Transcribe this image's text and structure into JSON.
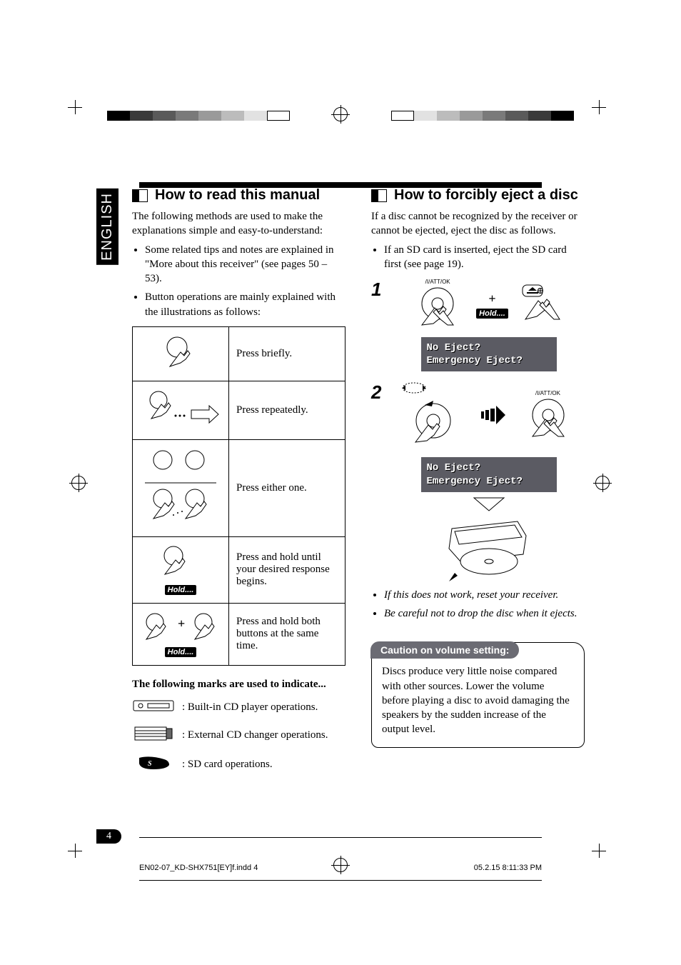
{
  "language_tab": "ENGLISH",
  "page_number": "4",
  "footer_left": "EN02-07_KD-SHX751[EY]f.indd   4",
  "footer_right": "05.2.15   8:11:33 PM",
  "colorbar_left": [
    "#000000",
    "#3a3a3a",
    "#5a5a5a",
    "#7a7a7a",
    "#9a9a9a",
    "#bcbcbc",
    "#e2e2e2",
    "#ffffff"
  ],
  "colorbar_right": [
    "#000000",
    "#3a3a3a",
    "#5a5a5a",
    "#7a7a7a",
    "#9a9a9a",
    "#bcbcbc",
    "#e2e2e2",
    "#ffffff"
  ],
  "left": {
    "heading": "How to read this manual",
    "intro": "The following methods are used to make the explanations simple and easy-to-understand:",
    "bullets": [
      "Some related tips and notes are explained in \"More about this receiver\" (see pages 50 – 53).",
      "Button operations are mainly explained with the illustrations as follows:"
    ],
    "table": [
      {
        "desc": "Press briefly."
      },
      {
        "desc": "Press repeatedly."
      },
      {
        "desc": "Press either one."
      },
      {
        "desc": "Press and hold until your desired response begins."
      },
      {
        "desc": "Press and hold both buttons at the same time."
      }
    ],
    "hold_label": "Hold....",
    "marks_intro": "The following marks are used to indicate...",
    "marks": [
      {
        "label": ":  Built-in CD player operations."
      },
      {
        "label": ":  External CD changer operations."
      },
      {
        "label": ":  SD card operations."
      }
    ]
  },
  "right": {
    "heading": "How to forcibly eject a disc",
    "intro": "If a disc cannot be recognized by the receiver or cannot be ejected, eject the disc as follows.",
    "bullets": [
      "If an SD card is inserted, eject the SD card first (see page 19)."
    ],
    "steps": [
      {
        "num": "1",
        "knob_label": "   /I/ATT/OK",
        "plus": "+",
        "hold": "Hold....",
        "display_l1": "No Eject?",
        "display_l2": "Emergency Eject?"
      },
      {
        "num": "2",
        "knob_label": "   /I/ATT/OK",
        "display_l1": "No Eject?",
        "display_l2": "Emergency Eject?"
      }
    ],
    "notes": [
      "If this does not work, reset your receiver.",
      "Be careful not to drop the disc when it ejects."
    ],
    "caution_title": "Caution on volume setting:",
    "caution_body": "Discs produce very little noise compared with other sources. Lower the volume before playing a disc to avoid damaging the speakers by the sudden increase of the output level."
  }
}
